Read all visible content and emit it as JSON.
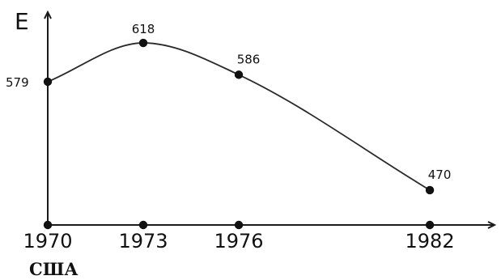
{
  "chart_data": {
    "type": "line",
    "title": "",
    "caption": "США",
    "ylabel": "Е",
    "xlabel": "",
    "categories": [
      "1970",
      "1973",
      "1976",
      "1982"
    ],
    "x": [
      1970,
      1973,
      1976,
      1982
    ],
    "series": [
      {
        "values": [
          579,
          618,
          586,
          470
        ]
      }
    ],
    "data_labels": [
      "579",
      "618",
      "586",
      "470"
    ],
    "ylim": [
      435,
      640
    ],
    "xlim": [
      1970,
      1983.6
    ],
    "grid": false,
    "smooth": true,
    "colors": {
      "line": "#2a2a2a",
      "marker": "#111111",
      "axis": "#1a1a1a"
    }
  }
}
